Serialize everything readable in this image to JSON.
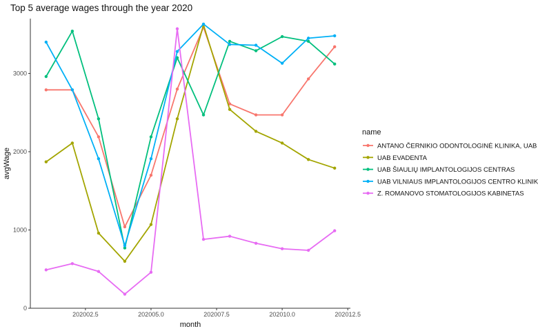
{
  "chart_data": {
    "type": "line",
    "title": "Top 5 average wages through the year 2020",
    "xlabel": "month",
    "ylabel": "avgWage",
    "xlim": [
      202000.4,
      202012.6
    ],
    "ylim": [
      0,
      3700
    ],
    "xticks": [
      202002.5,
      202005.0,
      202007.5,
      202010.0,
      202012.5
    ],
    "xtick_labels": [
      "202002.5",
      "202005.0",
      "202007.5",
      "202010.0",
      "202012.5"
    ],
    "yticks": [
      0,
      1000,
      2000,
      3000
    ],
    "ytick_labels": [
      "0",
      "1000",
      "2000",
      "3000"
    ],
    "grid": false,
    "legend": {
      "title": "name",
      "position": "right"
    },
    "x": [
      202001,
      202002,
      202003,
      202004,
      202005,
      202006,
      202007,
      202008,
      202009,
      202010,
      202011,
      202012
    ],
    "series": [
      {
        "name": "ANTANO ČERNIKIO ODONTOLOGINĖ KLINIKA, UAB",
        "color": "#F8766D",
        "values": [
          2790,
          2790,
          2190,
          1040,
          1700,
          2800,
          3590,
          2610,
          2470,
          2470,
          2930,
          3340
        ]
      },
      {
        "name": "UAB EVADENTA",
        "color": "#A3A500",
        "values": [
          1870,
          2110,
          960,
          600,
          1070,
          2420,
          3620,
          2540,
          2260,
          2110,
          1900,
          1790
        ]
      },
      {
        "name": "UAB ŠIAULIŲ IMPLANTOLOGIJOS CENTRAS",
        "color": "#00BF7D",
        "values": [
          2960,
          3540,
          2420,
          770,
          2190,
          3200,
          2470,
          3410,
          3290,
          3470,
          3410,
          3120
        ]
      },
      {
        "name": "UAB VILNIAUS IMPLANTOLOGIJOS CENTRO KLINIKA",
        "color": "#00B0F6",
        "values": [
          3400,
          2790,
          1910,
          800,
          1910,
          3280,
          3630,
          3370,
          3360,
          3130,
          3450,
          3480
        ]
      },
      {
        "name": "Z. ROMANOVO STOMATOLOGIJOS KABINETAS",
        "color": "#E76BF3",
        "values": [
          490,
          570,
          470,
          180,
          460,
          3570,
          880,
          920,
          830,
          760,
          740,
          990
        ]
      }
    ]
  }
}
